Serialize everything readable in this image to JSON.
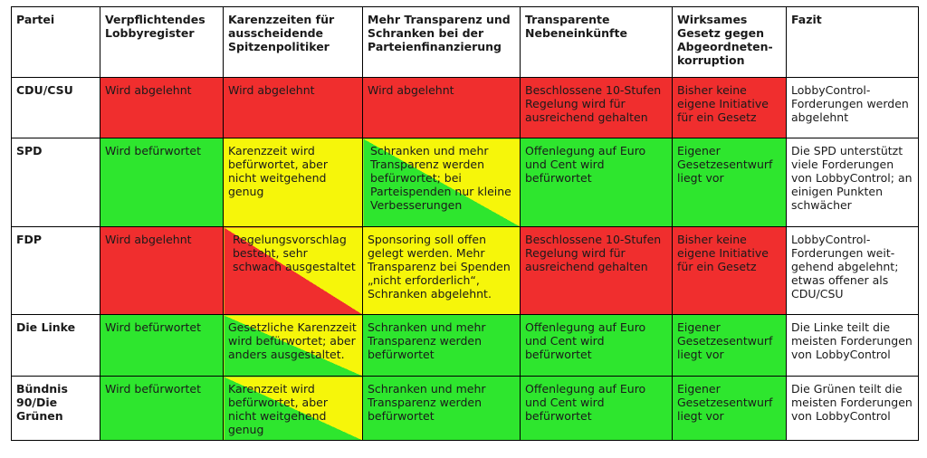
{
  "headers": [
    "Partei",
    "Verpflichtendes Lobbyregister",
    "Karenzzeiten für ausscheidende Spitzenpolitiker",
    "Mehr Transparenz und Schranken bei der Parteienfinanzierung",
    "Transparente Nebeneinkünfte",
    "Wirksames Gesetz gegen Abgeordneten-korruption",
    "Fazit"
  ],
  "colors": {
    "red": "#f02e2e",
    "green": "#2ee62e",
    "yellow": "#f6f60a",
    "border": "#000000"
  },
  "rows": [
    {
      "party": "CDU/CSU",
      "cells": [
        {
          "text": "Wird abgelehnt",
          "color": "red"
        },
        {
          "text": "Wird abgelehnt",
          "color": "red"
        },
        {
          "text": "Wird abgelehnt",
          "color": "red"
        },
        {
          "text": "Beschlossene 10-Stufen Regelung wird für ausreichend gehalten",
          "color": "red"
        },
        {
          "text": "Bisher keine eigene Initiative für ein Gesetz",
          "color": "red"
        }
      ],
      "fazit": "LobbyControl-Forderungen werden abgelehnt"
    },
    {
      "party": "SPD",
      "cells": [
        {
          "text": "Wird befürwortet",
          "color": "green"
        },
        {
          "text": "Karenzzeit wird befürwortet, aber nicht weitgehend genug",
          "color": "yellow"
        },
        {
          "text": "Schranken und mehr Transparenz werden befürwortet; bei Parteispenden nur kleine Verbesserungen",
          "color": "yellow/green diagonal"
        },
        {
          "text": "Offenlegung auf Euro und Cent wird befürwortet",
          "color": "green"
        },
        {
          "text": "Eigener Gesetzesentwurf liegt vor",
          "color": "green"
        }
      ],
      "fazit": "Die SPD unterstützt viele Forderungen von LobbyControl; an einigen Punkten schwächer"
    },
    {
      "party": "FDP",
      "cells": [
        {
          "text": "Wird abgelehnt",
          "color": "red"
        },
        {
          "text": "Regelungsvorschlag besteht, sehr schwach ausgestaltet",
          "color": "yellow/red diagonal"
        },
        {
          "text": "Sponsoring soll offen gelegt werden. Mehr Transparenz bei Spenden „nicht erforderlich“, Schranken abgelehnt.",
          "color": "yellow"
        },
        {
          "text": "Beschlossene 10-Stufen Regelung wird für ausreichend gehalten",
          "color": "red"
        },
        {
          "text": "Bisher keine eigene Initiative für ein Gesetz",
          "color": "red"
        }
      ],
      "fazit": "LobbyControl-Forderungen weit-gehend abgelehnt; etwas offener als CDU/CSU"
    },
    {
      "party": "Die Linke",
      "cells": [
        {
          "text": "Wird befürwortet",
          "color": "green"
        },
        {
          "text": "Gesetzliche Karenzzeit wird befürwortet; aber anders ausgestaltet.",
          "color": "yellow/green diagonal"
        },
        {
          "text": "Schranken und mehr Transparenz werden befürwortet",
          "color": "green"
        },
        {
          "text": "Offenlegung auf Euro und Cent wird befürwortet",
          "color": "green"
        },
        {
          "text": "Eigener Gesetzesentwurf liegt vor",
          "color": "green"
        }
      ],
      "fazit": "Die Linke teilt die meisten Forderungen von LobbyControl"
    },
    {
      "party": "Bündnis 90/Die Grünen",
      "cells": [
        {
          "text": "Wird befürwortet",
          "color": "green"
        },
        {
          "text": "Karenzzeit wird befürwortet, aber nicht weitgehend genug",
          "color": "yellow/green diagonal"
        },
        {
          "text": "Schranken und mehr Transparenz werden befürwortet",
          "color": "green"
        },
        {
          "text": "Offenlegung auf Euro und Cent wird befürwortet",
          "color": "green"
        },
        {
          "text": "Eigener Gesetzesentwurf liegt vor",
          "color": "green"
        }
      ],
      "fazit": "Die Grünen teilt die meisten Forderungen von LobbyControl"
    }
  ]
}
